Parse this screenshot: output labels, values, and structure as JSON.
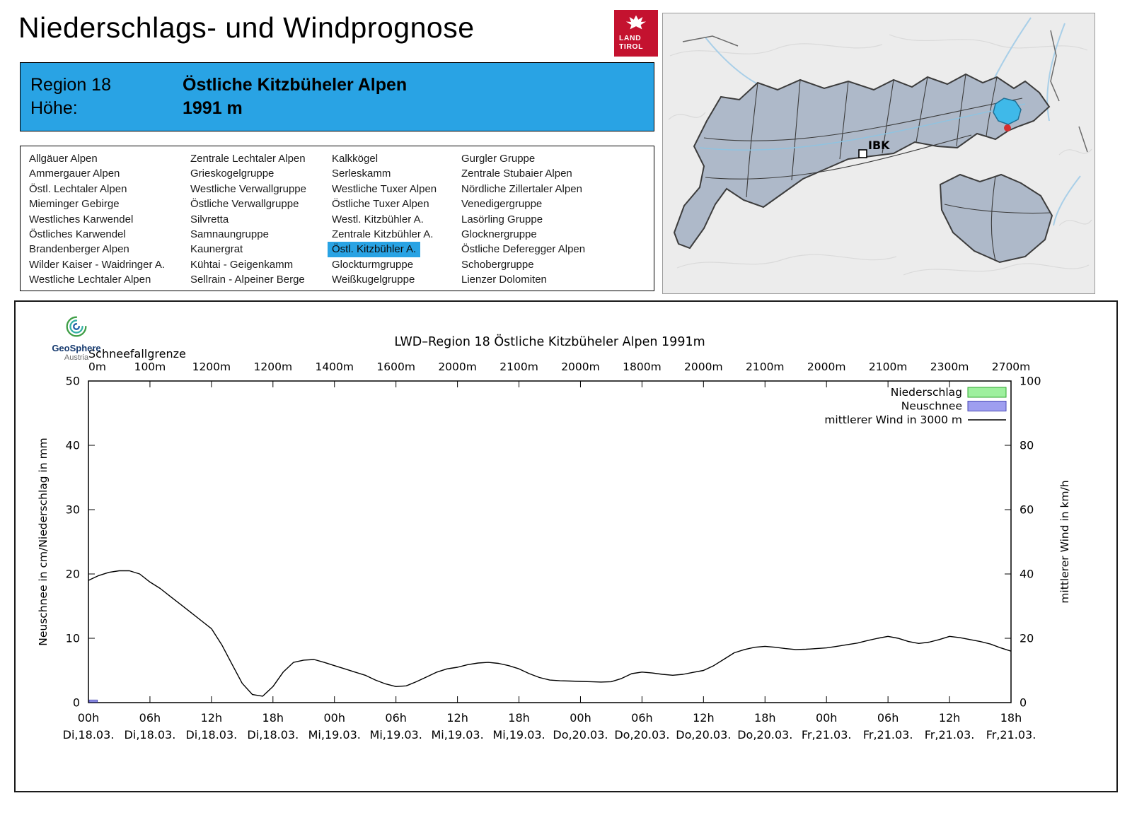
{
  "header": {
    "title": "Niederschlags- und Windprognose",
    "logo": {
      "line1": "LAND",
      "line2": "TIROL"
    }
  },
  "region_box": {
    "region_label": "Region 18",
    "region_name": "Östliche Kitzbüheler Alpen",
    "altitude_label": "Höhe:",
    "altitude_value": "1991 m"
  },
  "region_list": {
    "selected": "Östl. Kitzbühler A.",
    "columns": [
      [
        "Allgäuer Alpen",
        "Ammergauer Alpen",
        "Östl. Lechtaler Alpen",
        "Mieminger Gebirge",
        "Westliches Karwendel",
        "Östliches Karwendel",
        "Brandenberger Alpen",
        "Wilder Kaiser - Waidringer A.",
        "Westliche Lechtaler Alpen"
      ],
      [
        "Zentrale Lechtaler Alpen",
        "Grieskogelgruppe",
        "Westliche Verwallgruppe",
        "Östliche Verwallgruppe",
        "Silvretta",
        "Samnaungruppe",
        "Kaunergrat",
        "Kühtai - Geigenkamm",
        "Sellrain - Alpeiner Berge"
      ],
      [
        "Kalkkögel",
        "Serleskamm",
        "Westliche Tuxer Alpen",
        "Östliche Tuxer Alpen",
        "Westl. Kitzbühler A.",
        "Zentrale Kitzbühler A.",
        "Östl. Kitzbühler A.",
        "Glockturmgruppe",
        "Weißkugelgruppe"
      ],
      [
        "Gurgler Gruppe",
        "Zentrale Stubaier Alpen",
        "Nördliche Zillertaler Alpen",
        "Venedigergruppe",
        "Lasörling Gruppe",
        "Glocknergruppe",
        "Östliche Deferegger Alpen",
        "Schobergruppe",
        "Lienzer Dolomiten"
      ]
    ]
  },
  "map": {
    "marker_label": "IBK"
  },
  "colors": {
    "accent_blue": "#29a3e4",
    "logo_red": "#c4122f",
    "map_region_fill": "#aeb9c9",
    "map_highlight": "#3fb9e9",
    "marker_red": "#d62f2f"
  },
  "chart_data": {
    "type": "line",
    "title": "LWD–Region 18 Östliche Kitzbüheler Alpen 1991m",
    "logo": {
      "line1": "GeoSphere",
      "line2": "Austria"
    },
    "snowline": {
      "label": "Schneefallgrenze",
      "values": [
        "0m",
        "100m",
        "1200m",
        "1200m",
        "1400m",
        "1600m",
        "2000m",
        "2100m",
        "2000m",
        "1800m",
        "2000m",
        "2100m",
        "2000m",
        "2100m",
        "2300m",
        "2700m"
      ]
    },
    "x_ticks": {
      "hours": [
        "00h",
        "06h",
        "12h",
        "18h",
        "00h",
        "06h",
        "12h",
        "18h",
        "00h",
        "06h",
        "12h",
        "18h",
        "00h",
        "06h",
        "12h",
        "18h"
      ],
      "dates": [
        "Di,18.03.",
        "Di,18.03.",
        "Di,18.03.",
        "Di,18.03.",
        "Mi,19.03.",
        "Mi,19.03.",
        "Mi,19.03.",
        "Mi,19.03.",
        "Do,20.03.",
        "Do,20.03.",
        "Do,20.03.",
        "Do,20.03.",
        "Fr,21.03.",
        "Fr,21.03.",
        "Fr,21.03.",
        "Fr,21.03."
      ],
      "step_hours": 6
    },
    "time_span_hours": 90,
    "y_left": {
      "label": "Neuschnee in cm/Niederschlag in mm",
      "min": 0,
      "max": 50,
      "ticks": [
        0,
        10,
        20,
        30,
        40,
        50
      ]
    },
    "y_right": {
      "label": "mittlerer Wind in km/h",
      "min": 0,
      "max": 100,
      "ticks": [
        0,
        20,
        40,
        60,
        80,
        100
      ]
    },
    "legend": [
      {
        "label": "Niederschlag",
        "type": "box",
        "fill": "#9ef09e",
        "stroke": "#2fa82f"
      },
      {
        "label": "Neuschnee",
        "type": "box",
        "fill": "#9e9ef0",
        "stroke": "#4a4ab4"
      },
      {
        "label": "mittlerer Wind in 3000 m",
        "type": "line",
        "stroke": "#000000"
      }
    ],
    "wind_kmh": {
      "t_start_hour": 0,
      "t_step_hours": 1,
      "values": [
        38,
        39.5,
        40.5,
        41,
        41,
        40,
        37.5,
        35.5,
        33,
        30.5,
        28,
        25.5,
        23,
        18,
        12,
        6,
        2.5,
        2,
        5,
        9.5,
        12.5,
        13.2,
        13.4,
        12.5,
        11.5,
        10.5,
        9.5,
        8.5,
        7,
        5.8,
        5,
        5.2,
        6.5,
        8,
        9.5,
        10.5,
        11,
        11.8,
        12.3,
        12.5,
        12.2,
        11.5,
        10.5,
        9,
        7.8,
        7,
        6.8,
        6.7,
        6.6,
        6.5,
        6.4,
        6.5,
        7.5,
        9,
        9.5,
        9.2,
        8.8,
        8.5,
        8.8,
        9.4,
        10,
        11.5,
        13.5,
        15.5,
        16.5,
        17.2,
        17.5,
        17.2,
        16.8,
        16.5,
        16.6,
        16.8,
        17,
        17.5,
        18,
        18.5,
        19.3,
        20,
        20.6,
        20,
        19,
        18.4,
        18.8,
        19.6,
        20.6,
        20.2,
        19.6,
        19,
        18.2,
        17,
        16
      ]
    },
    "neuschnee_cm": [
      {
        "t": 0,
        "duration_h": 0.8,
        "value": 0.4
      }
    ],
    "niederschlag_mm": []
  }
}
